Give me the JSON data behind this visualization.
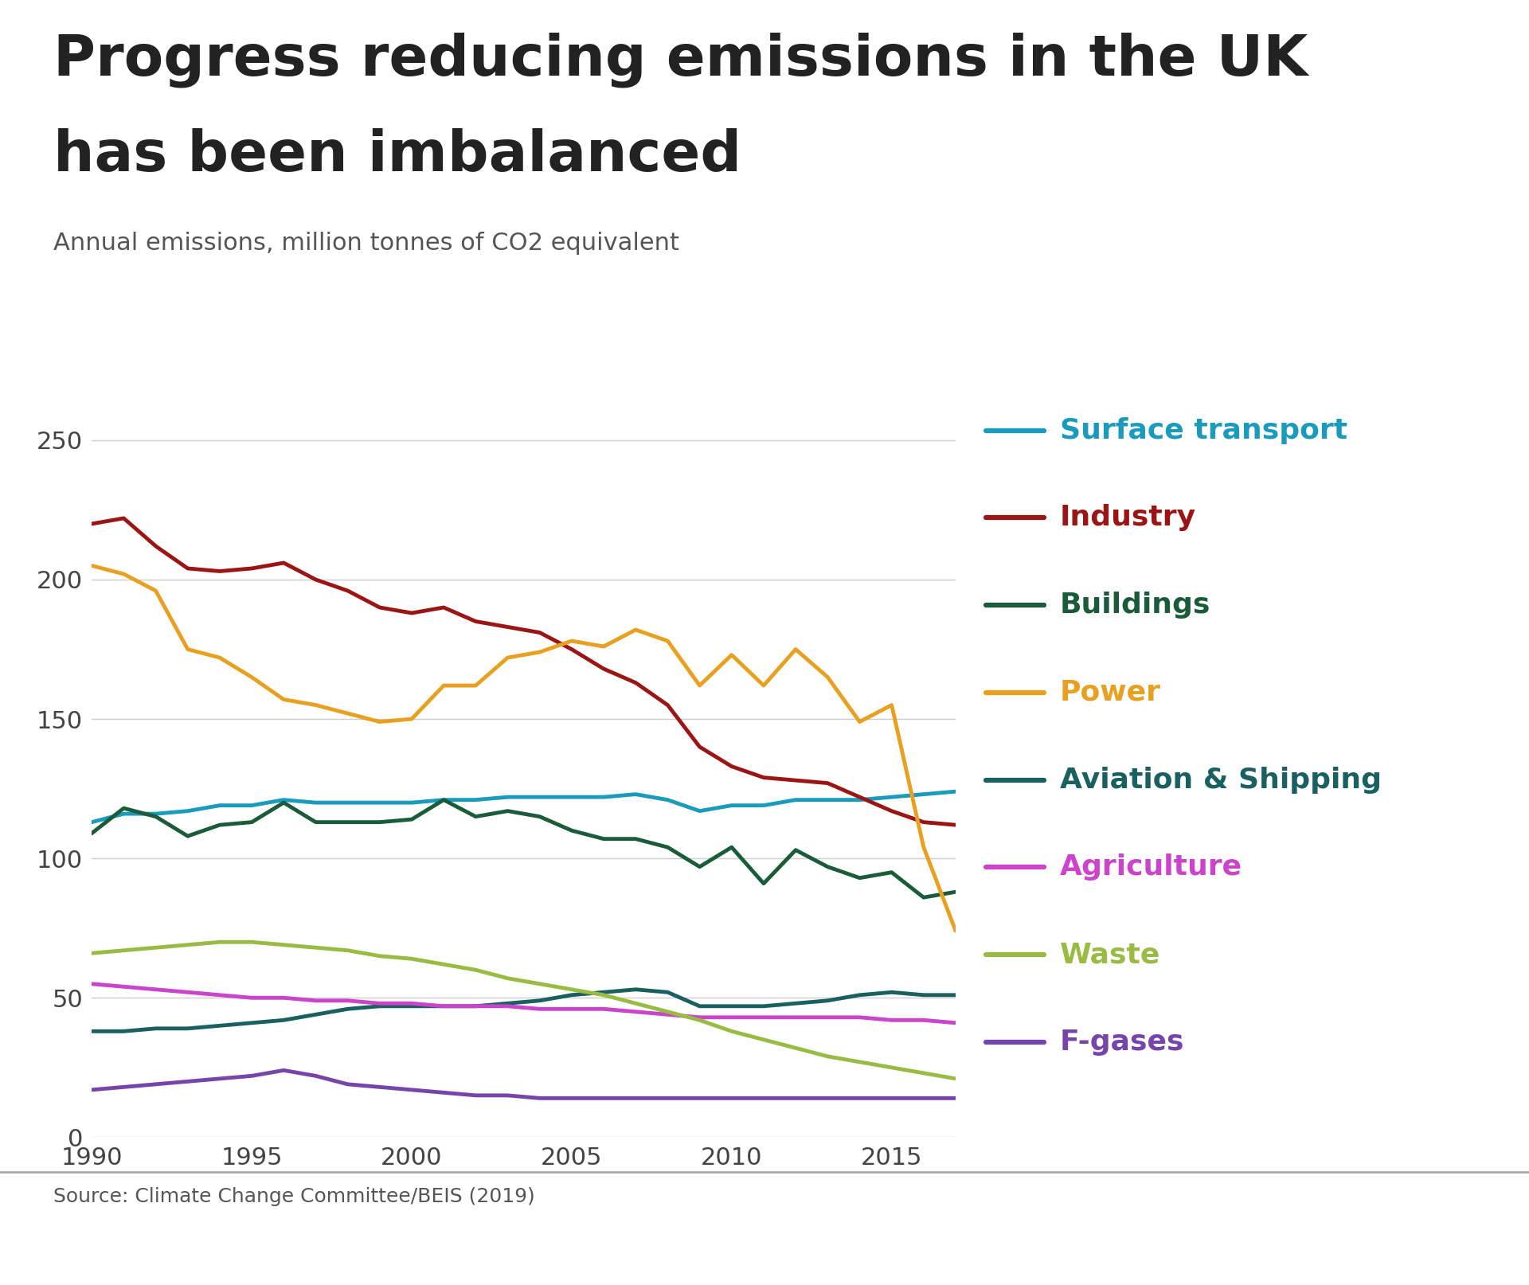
{
  "title_line1": "Progress reducing emissions in the UK",
  "title_line2": "has been imbalanced",
  "subtitle": "Annual emissions, million tonnes of CO2 equivalent",
  "source": "Source: Climate Change Committee/BEIS (2019)",
  "years": [
    1990,
    1991,
    1992,
    1993,
    1994,
    1995,
    1996,
    1997,
    1998,
    1999,
    2000,
    2001,
    2002,
    2003,
    2004,
    2005,
    2006,
    2007,
    2008,
    2009,
    2010,
    2011,
    2012,
    2013,
    2014,
    2015,
    2016,
    2017
  ],
  "series": {
    "Surface transport": {
      "color": "#1a9bbc",
      "values": [
        113,
        116,
        116,
        117,
        119,
        119,
        121,
        120,
        120,
        120,
        120,
        121,
        121,
        122,
        122,
        122,
        122,
        123,
        121,
        117,
        119,
        119,
        121,
        121,
        121,
        122,
        123,
        124
      ]
    },
    "Industry": {
      "color": "#9b1515",
      "values": [
        220,
        222,
        212,
        204,
        203,
        204,
        206,
        200,
        196,
        190,
        188,
        190,
        185,
        183,
        181,
        175,
        168,
        163,
        155,
        140,
        133,
        129,
        128,
        127,
        122,
        117,
        113,
        112
      ]
    },
    "Buildings": {
      "color": "#1a5c3a",
      "values": [
        109,
        118,
        115,
        108,
        112,
        113,
        120,
        113,
        113,
        113,
        114,
        121,
        115,
        117,
        115,
        110,
        107,
        107,
        104,
        97,
        104,
        91,
        103,
        97,
        93,
        95,
        86,
        88
      ]
    },
    "Power": {
      "color": "#e8a020",
      "values": [
        205,
        202,
        196,
        175,
        172,
        165,
        157,
        155,
        152,
        149,
        150,
        162,
        162,
        172,
        174,
        178,
        176,
        182,
        178,
        162,
        173,
        162,
        175,
        165,
        149,
        155,
        104,
        74
      ]
    },
    "Aviation & Shipping": {
      "color": "#1a6060",
      "values": [
        38,
        38,
        39,
        39,
        40,
        41,
        42,
        44,
        46,
        47,
        47,
        47,
        47,
        48,
        49,
        51,
        52,
        53,
        52,
        47,
        47,
        47,
        48,
        49,
        51,
        52,
        51,
        51
      ]
    },
    "Agriculture": {
      "color": "#cc44cc",
      "values": [
        55,
        54,
        53,
        52,
        51,
        50,
        50,
        49,
        49,
        48,
        48,
        47,
        47,
        47,
        46,
        46,
        46,
        45,
        44,
        43,
        43,
        43,
        43,
        43,
        43,
        42,
        42,
        41
      ]
    },
    "Waste": {
      "color": "#99bb44",
      "values": [
        66,
        67,
        68,
        69,
        70,
        70,
        69,
        68,
        67,
        65,
        64,
        62,
        60,
        57,
        55,
        53,
        51,
        48,
        45,
        42,
        38,
        35,
        32,
        29,
        27,
        25,
        23,
        21
      ]
    },
    "F-gases": {
      "color": "#7744aa",
      "values": [
        17,
        18,
        19,
        20,
        21,
        22,
        24,
        22,
        19,
        18,
        17,
        16,
        15,
        15,
        14,
        14,
        14,
        14,
        14,
        14,
        14,
        14,
        14,
        14,
        14,
        14,
        14,
        14
      ]
    }
  },
  "yticks": [
    0,
    50,
    100,
    150,
    200,
    250
  ],
  "xticks": [
    1990,
    1995,
    2000,
    2005,
    2010,
    2015
  ],
  "ylim": [
    0,
    265
  ],
  "xlim": [
    1990,
    2017
  ],
  "legend_order": [
    "Surface transport",
    "Industry",
    "Buildings",
    "Power",
    "Aviation & Shipping",
    "Agriculture",
    "Waste",
    "F-gases"
  ],
  "background_color": "#ffffff",
  "grid_color": "#cccccc",
  "separator_color": "#aaaaaa",
  "bbc_box_color": "#707070",
  "title_color": "#222222",
  "subtitle_color": "#555555",
  "source_color": "#555555",
  "tick_color": "#444444",
  "title_fontsize": 52,
  "subtitle_fontsize": 22,
  "tick_fontsize": 22,
  "legend_fontsize": 26,
  "source_fontsize": 18
}
